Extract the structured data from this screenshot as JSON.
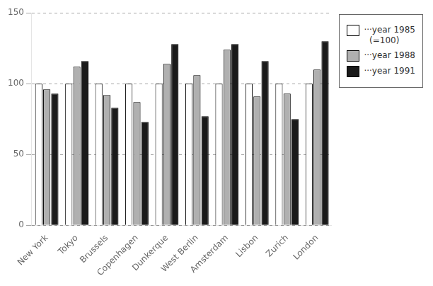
{
  "chart_data": {
    "type": "bar",
    "categories": [
      "New York",
      "Tokyo",
      "Brussels",
      "Copenhagen",
      "Dunkerque",
      "West Berlin",
      "Amsterdam",
      "Lisbon",
      "Zurich",
      "London"
    ],
    "series": [
      {
        "name": "···year 1985\n  (=100)",
        "color": "#ffffff",
        "values": [
          100,
          100,
          100,
          100,
          100,
          100,
          100,
          100,
          100,
          100
        ]
      },
      {
        "name": "···year 1988",
        "color": "#b0b0b0",
        "values": [
          96,
          112,
          92,
          87,
          114,
          106,
          124,
          91,
          93,
          110
        ]
      },
      {
        "name": "···year 1991",
        "color": "#1a1a1a",
        "values": [
          93,
          116,
          83,
          73,
          128,
          77,
          128,
          116,
          75,
          130
        ]
      }
    ],
    "ylim": [
      0,
      150
    ],
    "yticks": [
      0,
      50,
      100,
      150
    ],
    "grid": true,
    "legend": "right"
  }
}
